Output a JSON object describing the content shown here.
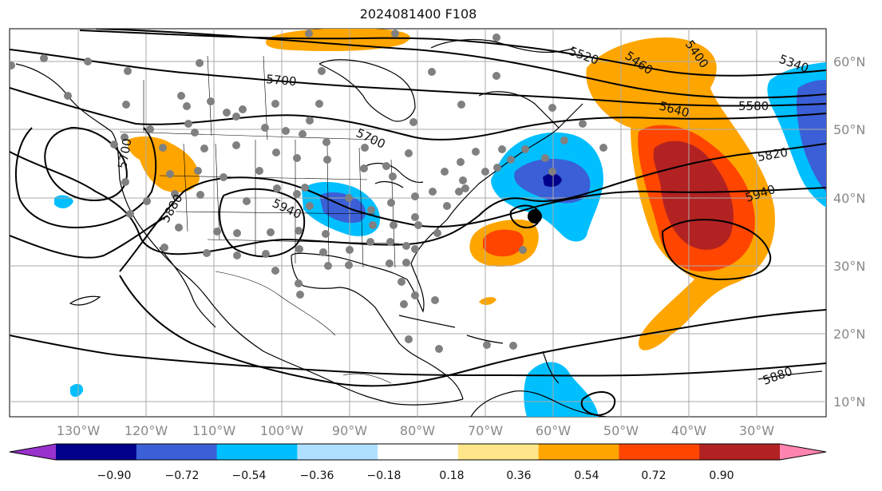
{
  "title": "2024081400 F108",
  "lon_labels": [
    "130°W",
    "120°W",
    "110°W",
    "100°W",
    "90°W",
    "80°W",
    "70°W",
    "60°W",
    "50°W",
    "40°W",
    "30°W"
  ],
  "lat_labels": [
    "60°N",
    "50°N",
    "40°N",
    "30°N",
    "20°N",
    "10°N"
  ],
  "contour_labels": [
    "5520",
    "5460",
    "5400",
    "5340",
    "5700",
    "5640",
    "5580",
    "5700",
    "5820",
    "5940",
    "5940",
    "5880",
    "5880",
    "5700"
  ],
  "colorbar": {
    "tick_labels": [
      "−0.90",
      "−0.72",
      "−0.54",
      "−0.36",
      "−0.18",
      "0.18",
      "0.36",
      "0.54",
      "0.72",
      "0.90"
    ],
    "colors": [
      "#9932cc",
      "#00008b",
      "#3b5fd6",
      "#00bfff",
      "#b0e0ff",
      "#ffffff",
      "#ffe68a",
      "#ffa500",
      "#ff4500",
      "#b22222",
      "#ff85b0"
    ]
  },
  "legend": {
    "station_dot_color": "#808080",
    "contour_color": "#000000"
  }
}
